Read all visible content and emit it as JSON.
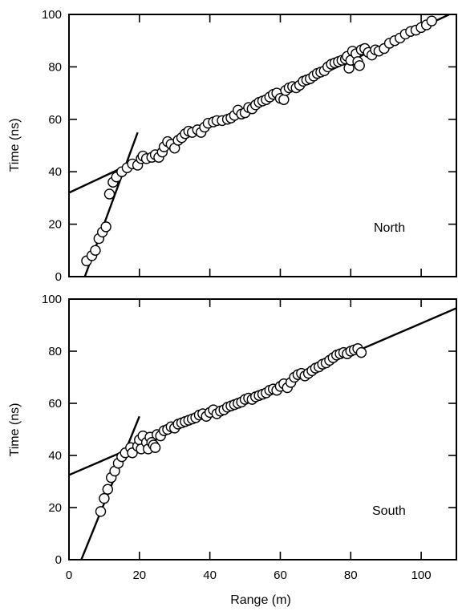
{
  "chart_data": [
    {
      "type": "scatter",
      "panel_label": "North",
      "xlabel": "",
      "ylabel": "Time (ns)",
      "xlim": [
        0,
        110
      ],
      "ylim": [
        0,
        100
      ],
      "x_ticks": [
        0,
        20,
        40,
        60,
        80,
        100
      ],
      "y_ticks": [
        0,
        20,
        40,
        60,
        80,
        100
      ],
      "x_tick_labels_visible": false,
      "grid": false,
      "points": [
        [
          5,
          6
        ],
        [
          6.5,
          8
        ],
        [
          7.5,
          10
        ],
        [
          8.5,
          14.5
        ],
        [
          9.5,
          17
        ],
        [
          10.5,
          19
        ],
        [
          11.5,
          31.5
        ],
        [
          12.5,
          36
        ],
        [
          13.5,
          38
        ],
        [
          15,
          40
        ],
        [
          16.5,
          41.5
        ],
        [
          18,
          43
        ],
        [
          19.5,
          42.5
        ],
        [
          20.5,
          45
        ],
        [
          21,
          46
        ],
        [
          22,
          45
        ],
        [
          23.5,
          45.5
        ],
        [
          24.5,
          46.5
        ],
        [
          25.5,
          45.5
        ],
        [
          26.5,
          47.5
        ],
        [
          27,
          49.5
        ],
        [
          28,
          51.5
        ],
        [
          29,
          50.5
        ],
        [
          30,
          49
        ],
        [
          31,
          52
        ],
        [
          32,
          53
        ],
        [
          33,
          54.5
        ],
        [
          34,
          55.5
        ],
        [
          35,
          55
        ],
        [
          36.5,
          56
        ],
        [
          37.5,
          55
        ],
        [
          38.5,
          57
        ],
        [
          39.5,
          58.5
        ],
        [
          41,
          59
        ],
        [
          42,
          59.5
        ],
        [
          43.5,
          59.5
        ],
        [
          45,
          60
        ],
        [
          46,
          60.5
        ],
        [
          47,
          61.5
        ],
        [
          48,
          63.5
        ],
        [
          49,
          62
        ],
        [
          50,
          62.5
        ],
        [
          51,
          64.5
        ],
        [
          52,
          64
        ],
        [
          53,
          65.5
        ],
        [
          54,
          66.5
        ],
        [
          55,
          67
        ],
        [
          56,
          67.5
        ],
        [
          57,
          68.5
        ],
        [
          58,
          69.5
        ],
        [
          59,
          70
        ],
        [
          60,
          68
        ],
        [
          61,
          67.5
        ],
        [
          61.5,
          71
        ],
        [
          62.5,
          72
        ],
        [
          63.5,
          72.5
        ],
        [
          64.5,
          72
        ],
        [
          65.5,
          73
        ],
        [
          66.5,
          74.5
        ],
        [
          67.5,
          75
        ],
        [
          68.5,
          75.5
        ],
        [
          69.5,
          76.5
        ],
        [
          70.5,
          77.5
        ],
        [
          71.5,
          78
        ],
        [
          72.5,
          78.5
        ],
        [
          73.5,
          80
        ],
        [
          74.5,
          81
        ],
        [
          75.5,
          81.5
        ],
        [
          76.5,
          82
        ],
        [
          77.5,
          82.5
        ],
        [
          78.5,
          83
        ],
        [
          79,
          84
        ],
        [
          79.5,
          79.5
        ],
        [
          80,
          82.5
        ],
        [
          80.5,
          86
        ],
        [
          81.5,
          85
        ],
        [
          82,
          82
        ],
        [
          82.5,
          80.5
        ],
        [
          83,
          86.5
        ],
        [
          84,
          87
        ],
        [
          85,
          85.5
        ],
        [
          86,
          84.5
        ],
        [
          87,
          86.5
        ],
        [
          88,
          86
        ],
        [
          89.5,
          87
        ],
        [
          91,
          89
        ],
        [
          92.5,
          90
        ],
        [
          94,
          91
        ],
        [
          95.5,
          92.5
        ],
        [
          97,
          93.5
        ],
        [
          98.5,
          94
        ],
        [
          100,
          95
        ],
        [
          101.5,
          96
        ],
        [
          103,
          97.5
        ]
      ],
      "fit_lines": [
        {
          "x": [
            4.5,
            19.5
          ],
          "y": [
            0,
            55
          ]
        },
        {
          "x": [
            0,
            108
          ],
          "y": [
            32,
            100
          ]
        }
      ]
    },
    {
      "type": "scatter",
      "panel_label": "South",
      "xlabel": "Range (m)",
      "ylabel": "Time (ns)",
      "xlim": [
        0,
        110
      ],
      "ylim": [
        0,
        100
      ],
      "x_ticks": [
        0,
        20,
        40,
        60,
        80,
        100
      ],
      "y_ticks": [
        0,
        20,
        40,
        60,
        80,
        100
      ],
      "x_tick_labels_visible": true,
      "grid": false,
      "points": [
        [
          9,
          18.5
        ],
        [
          10,
          23.5
        ],
        [
          11,
          27
        ],
        [
          12,
          31.5
        ],
        [
          13,
          34
        ],
        [
          14,
          37
        ],
        [
          15,
          39.5
        ],
        [
          16,
          41
        ],
        [
          17.5,
          43
        ],
        [
          18,
          41
        ],
        [
          19.5,
          43.5
        ],
        [
          20,
          46
        ],
        [
          20.5,
          42.5
        ],
        [
          21,
          47.5
        ],
        [
          22,
          45
        ],
        [
          22.5,
          42.5
        ],
        [
          23,
          47
        ],
        [
          23.5,
          45
        ],
        [
          24,
          44
        ],
        [
          24.5,
          43
        ],
        [
          25,
          48
        ],
        [
          26,
          47.5
        ],
        [
          27,
          49.5
        ],
        [
          28,
          50
        ],
        [
          29,
          51
        ],
        [
          30,
          50.5
        ],
        [
          31,
          52
        ],
        [
          32,
          52.5
        ],
        [
          33,
          53
        ],
        [
          34,
          53.5
        ],
        [
          35,
          54
        ],
        [
          36,
          54.5
        ],
        [
          37,
          55.5
        ],
        [
          38,
          56
        ],
        [
          39,
          55
        ],
        [
          40,
          56.5
        ],
        [
          41,
          57.5
        ],
        [
          42,
          56
        ],
        [
          43,
          57
        ],
        [
          44,
          57.5
        ],
        [
          45,
          58.5
        ],
        [
          46,
          59
        ],
        [
          47,
          59.5
        ],
        [
          48,
          60
        ],
        [
          49,
          60.5
        ],
        [
          50,
          61.5
        ],
        [
          51,
          62
        ],
        [
          52,
          61.5
        ],
        [
          53,
          62.5
        ],
        [
          54,
          63
        ],
        [
          55,
          63.5
        ],
        [
          56,
          64
        ],
        [
          57,
          65
        ],
        [
          58,
          65.5
        ],
        [
          59,
          65
        ],
        [
          60,
          66.5
        ],
        [
          61,
          67.5
        ],
        [
          62,
          66
        ],
        [
          63,
          68
        ],
        [
          64,
          70
        ],
        [
          65,
          71
        ],
        [
          66,
          71.5
        ],
        [
          67,
          70.5
        ],
        [
          68,
          71.5
        ],
        [
          69,
          72.5
        ],
        [
          70,
          73.5
        ],
        [
          71,
          74
        ],
        [
          72,
          75
        ],
        [
          73,
          75.5
        ],
        [
          74,
          76.5
        ],
        [
          75,
          77.5
        ],
        [
          76,
          78.5
        ],
        [
          77,
          79
        ],
        [
          78,
          79.5
        ],
        [
          79,
          79
        ],
        [
          80,
          80
        ],
        [
          81,
          80.5
        ],
        [
          82,
          81
        ],
        [
          83,
          79.5
        ]
      ],
      "fit_lines": [
        {
          "x": [
            3.5,
            20
          ],
          "y": [
            0,
            55
          ]
        },
        {
          "x": [
            0,
            110
          ],
          "y": [
            32.5,
            96.5
          ]
        }
      ]
    }
  ]
}
